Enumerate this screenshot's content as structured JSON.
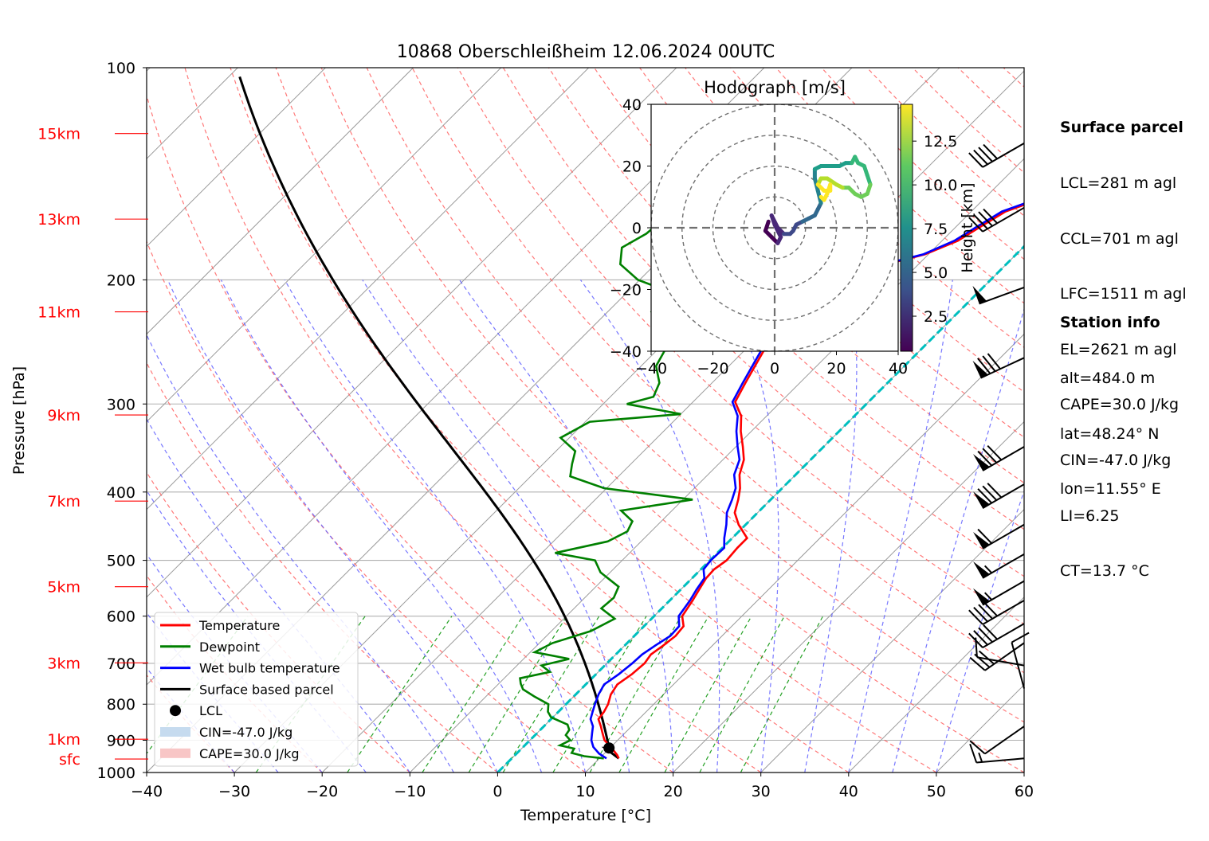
{
  "title": "10868 Oberschleißheim 12.06.2024 00UTC",
  "chart_data": {
    "type": "skew-t log-p",
    "xlabel": "Temperature [°C]",
    "ylabel": "Pressure [hPa]",
    "xlim": [
      -40,
      60
    ],
    "ylim": [
      1000,
      100
    ],
    "x_ticks": [
      "−40",
      "−30",
      "−20",
      "−10",
      "0",
      "10",
      "20",
      "30",
      "40",
      "50",
      "60"
    ],
    "x_tick_values": [
      -40,
      -30,
      -20,
      -10,
      0,
      10,
      20,
      30,
      40,
      50,
      60
    ],
    "y_ticks": [
      "100",
      "200",
      "300",
      "400",
      "500",
      "600",
      "700",
      "800",
      "900",
      "1000"
    ],
    "y_tick_values": [
      100,
      200,
      300,
      400,
      500,
      600,
      700,
      800,
      900,
      1000
    ],
    "height_labels": [
      {
        "label": "15km",
        "p": 124
      },
      {
        "label": "13km",
        "p": 164
      },
      {
        "label": "11km",
        "p": 222
      },
      {
        "label": "9km",
        "p": 311
      },
      {
        "label": "7km",
        "p": 412
      },
      {
        "label": "5km",
        "p": 545
      },
      {
        "label": "3km",
        "p": 699
      },
      {
        "label": "1km",
        "p": 897
      },
      {
        "label": "sfc",
        "p": 957
      }
    ],
    "series": [
      {
        "name": "Temperature",
        "color": "#ff0000",
        "points": [
          [
            12.2,
            955
          ],
          [
            11.6,
            944
          ],
          [
            10,
            920
          ],
          [
            8.5,
            900
          ],
          [
            7.5,
            880
          ],
          [
            6.5,
            860
          ],
          [
            5.4,
            840
          ],
          [
            5.2,
            820
          ],
          [
            4.8,
            800
          ],
          [
            4,
            775
          ],
          [
            3.6,
            750
          ],
          [
            4.1,
            725
          ],
          [
            4.3,
            700
          ],
          [
            4,
            680
          ],
          [
            4.4,
            660
          ],
          [
            4.7,
            640
          ],
          [
            4.5,
            620
          ],
          [
            3.2,
            600
          ],
          [
            2.6,
            570
          ],
          [
            2.1,
            550
          ],
          [
            1.6,
            530
          ],
          [
            1.5,
            515
          ],
          [
            1.9,
            500
          ],
          [
            1.7,
            480
          ],
          [
            1.7,
            465
          ],
          [
            -0.8,
            445
          ],
          [
            -2.6,
            428
          ],
          [
            -3.7,
            410
          ],
          [
            -4.8,
            395
          ],
          [
            -6.4,
            378
          ],
          [
            -7.6,
            360
          ],
          [
            -9.2,
            345
          ],
          [
            -11.2,
            328
          ],
          [
            -12.9,
            312
          ],
          [
            -15.2,
            298
          ],
          [
            -16.2,
            280
          ],
          [
            -17.2,
            262
          ],
          [
            -18.2,
            245
          ],
          [
            -19.5,
            228
          ],
          [
            -20.3,
            213
          ],
          [
            -19.5,
            202
          ],
          [
            -15.2,
            193
          ],
          [
            -10.4,
            184
          ],
          [
            -8.2,
            176
          ],
          [
            -7.2,
            168
          ],
          [
            -6.1,
            160
          ],
          [
            -2,
            150
          ],
          [
            -0.9,
            142
          ],
          [
            1.5,
            133
          ],
          [
            2.4,
            125
          ],
          [
            2.6,
            118
          ]
        ]
      },
      {
        "name": "Dewpoint",
        "color": "#008000",
        "points": [
          [
            10.5,
            955
          ],
          [
            8,
            948
          ],
          [
            6.2,
            938
          ],
          [
            6,
            925
          ],
          [
            4,
            915
          ],
          [
            4.6,
            900
          ],
          [
            3.5,
            885
          ],
          [
            3.3,
            870
          ],
          [
            2.5,
            855
          ],
          [
            -0.2,
            835
          ],
          [
            -1.2,
            820
          ],
          [
            -2,
            800
          ],
          [
            -4.5,
            780
          ],
          [
            -6.6,
            762
          ],
          [
            -7.5,
            748
          ],
          [
            -8.2,
            735
          ],
          [
            -5.5,
            720
          ],
          [
            -7.2,
            705
          ],
          [
            -4.8,
            690
          ],
          [
            -9.5,
            675
          ],
          [
            -8.5,
            655
          ],
          [
            -5.5,
            630
          ],
          [
            -4.2,
            605
          ],
          [
            -6.9,
            585
          ],
          [
            -6.7,
            565
          ],
          [
            -7.4,
            545
          ],
          [
            -11.1,
            520
          ],
          [
            -13.1,
            500
          ],
          [
            -18.5,
            488
          ],
          [
            -13.8,
            470
          ],
          [
            -12.7,
            455
          ],
          [
            -13.3,
            440
          ],
          [
            -15.8,
            425
          ],
          [
            -8.9,
            410
          ],
          [
            -20.3,
            395
          ],
          [
            -25.5,
            380
          ],
          [
            -26.7,
            365
          ],
          [
            -27.8,
            350
          ],
          [
            -31,
            335
          ],
          [
            -29.5,
            318
          ],
          [
            -20,
            310
          ],
          [
            -27.3,
            300
          ],
          [
            -25.1,
            293
          ],
          [
            -26,
            280
          ],
          [
            -28.3,
            265
          ],
          [
            -29.2,
            250
          ],
          [
            -31.4,
            235
          ],
          [
            -35,
            222
          ],
          [
            -35.2,
            208
          ],
          [
            -40.2,
            200
          ],
          [
            -44,
            190
          ],
          [
            -45.7,
            180
          ],
          [
            -44.5,
            172
          ],
          [
            -44.2,
            164
          ],
          [
            -42.5,
            156
          ],
          [
            -42,
            148
          ],
          [
            -40.8,
            140
          ],
          [
            -41,
            132
          ],
          [
            -40,
            125
          ],
          [
            -39.2,
            120
          ]
        ]
      },
      {
        "name": "Wet bulb temperature",
        "color": "#0000ff",
        "points": [
          [
            10.8,
            955
          ],
          [
            9.4,
            940
          ],
          [
            8,
            920
          ],
          [
            7,
            900
          ],
          [
            6.3,
            880
          ],
          [
            5.6,
            860
          ],
          [
            4.5,
            840
          ],
          [
            3.9,
            820
          ],
          [
            3.3,
            800
          ],
          [
            2.6,
            775
          ],
          [
            2.1,
            750
          ],
          [
            2.6,
            725
          ],
          [
            2.9,
            700
          ],
          [
            3,
            680
          ],
          [
            3.5,
            660
          ],
          [
            4.1,
            640
          ],
          [
            4,
            620
          ],
          [
            2.8,
            600
          ],
          [
            2.3,
            570
          ],
          [
            1.8,
            550
          ],
          [
            1.4,
            530
          ],
          [
            0.3,
            515
          ],
          [
            0.1,
            500
          ],
          [
            0.2,
            480
          ],
          [
            -0.9,
            465
          ],
          [
            -2.2,
            445
          ],
          [
            -3.5,
            428
          ],
          [
            -4.4,
            410
          ],
          [
            -5.3,
            395
          ],
          [
            -7,
            378
          ],
          [
            -8.1,
            360
          ],
          [
            -9.8,
            345
          ],
          [
            -11.7,
            328
          ],
          [
            -13.3,
            312
          ],
          [
            -15.5,
            298
          ],
          [
            -16.5,
            280
          ],
          [
            -17.5,
            262
          ],
          [
            -18.5,
            245
          ],
          [
            -19.7,
            228
          ],
          [
            -20.5,
            213
          ],
          [
            -19.7,
            202
          ],
          [
            -15.5,
            193
          ],
          [
            -10.6,
            184
          ],
          [
            -8.6,
            176
          ],
          [
            -7.6,
            168
          ],
          [
            -6.5,
            160
          ],
          [
            -2.5,
            150
          ],
          [
            -1.4,
            142
          ],
          [
            0.9,
            133
          ],
          [
            1.8,
            125
          ],
          [
            2.2,
            118
          ]
        ]
      },
      {
        "name": "Surface based parcel",
        "color": "#000000"
      }
    ],
    "lcl": {
      "label": "LCL",
      "t": 9.9,
      "p": 923
    },
    "legend_position": "lower-left",
    "legend": [
      {
        "label": "Temperature",
        "kind": "line",
        "color": "#ff0000"
      },
      {
        "label": "Dewpoint",
        "kind": "line",
        "color": "#008000"
      },
      {
        "label": "Wet bulb temperature",
        "kind": "line",
        "color": "#0000ff"
      },
      {
        "label": "Surface based parcel",
        "kind": "line",
        "color": "#000000"
      },
      {
        "label": "LCL",
        "kind": "dot",
        "color": "#000000"
      },
      {
        "label": "CIN=-47.0 J/kg",
        "kind": "patch",
        "color": "#c6dbef"
      },
      {
        "label": "CAPE=30.0 J/kg",
        "kind": "patch",
        "color": "#f8c6c6"
      }
    ],
    "zero_isotherm_color": "#00bfbf",
    "wind_barbs": [
      {
        "p": 955,
        "speed_kt": 15,
        "dir": 265
      },
      {
        "p": 860,
        "speed_kt": 10,
        "dir": 235
      },
      {
        "p": 760,
        "speed_kt": 10,
        "dir": 345
      },
      {
        "p": 705,
        "speed_kt": 10,
        "dir": 280
      },
      {
        "p": 655,
        "speed_kt": 30,
        "dir": 235
      },
      {
        "p": 615,
        "speed_kt": 40,
        "dir": 240
      },
      {
        "p": 570,
        "speed_kt": 40,
        "dir": 240
      },
      {
        "p": 535,
        "speed_kt": 55,
        "dir": 240
      },
      {
        "p": 490,
        "speed_kt": 55,
        "dir": 240
      },
      {
        "p": 445,
        "speed_kt": 60,
        "dir": 240
      },
      {
        "p": 390,
        "speed_kt": 80,
        "dir": 240
      },
      {
        "p": 345,
        "speed_kt": 80,
        "dir": 240
      },
      {
        "p": 258,
        "speed_kt": 80,
        "dir": 245
      },
      {
        "p": 205,
        "speed_kt": 50,
        "dir": 250
      },
      {
        "p": 158,
        "speed_kt": 40,
        "dir": 240
      },
      {
        "p": 128,
        "speed_kt": 40,
        "dir": 240
      }
    ],
    "hodograph": {
      "title": "Hodograph [m/s]",
      "xlim": [
        -40,
        40
      ],
      "ylim": [
        -40,
        40
      ],
      "ticks": [
        "−40",
        "−20",
        "0",
        "20",
        "40"
      ],
      "tick_values": [
        -40,
        -20,
        0,
        20,
        40
      ],
      "colorbar_label": "Height [km]",
      "colorbar_ticks": [
        "2.5",
        "5.0",
        "7.5",
        "10.0",
        "12.5"
      ],
      "colorbar_tick_values": [
        2.5,
        5.0,
        7.5,
        10.0,
        12.5
      ],
      "colorbar_range": [
        0.5,
        14.6
      ],
      "colormap": "viridis",
      "points": [
        [
          -2,
          2,
          0.5
        ],
        [
          -3,
          -1,
          0.9
        ],
        [
          -1,
          -3,
          1.3
        ],
        [
          1,
          -5,
          1.7
        ],
        [
          2,
          -3,
          2.1
        ],
        [
          0,
          1,
          2.4
        ],
        [
          -1,
          4,
          2.6
        ],
        [
          1,
          0,
          2.9
        ],
        [
          3,
          -2,
          3.2
        ],
        [
          5,
          -2,
          3.5
        ],
        [
          6,
          -1,
          3.8
        ],
        [
          7,
          1,
          4.1
        ],
        [
          9,
          2,
          4.5
        ],
        [
          11,
          3,
          4.9
        ],
        [
          13,
          4,
          5.3
        ],
        [
          14,
          6,
          5.7
        ],
        [
          15,
          8,
          6.1
        ],
        [
          14,
          12,
          6.6
        ],
        [
          13,
          16,
          7.0
        ],
        [
          13,
          19,
          7.4
        ],
        [
          15,
          20,
          7.7
        ],
        [
          18,
          20,
          8.0
        ],
        [
          21,
          20,
          8.3
        ],
        [
          23,
          21,
          8.6
        ],
        [
          25,
          21,
          8.9
        ],
        [
          26,
          23,
          9.1
        ],
        [
          27,
          21,
          9.4
        ],
        [
          29,
          20,
          9.7
        ],
        [
          30,
          17,
          9.9
        ],
        [
          31,
          14,
          10.2
        ],
        [
          30,
          11,
          10.5
        ],
        [
          28,
          10,
          10.8
        ],
        [
          26,
          11,
          11.1
        ],
        [
          24,
          13,
          11.4
        ],
        [
          22,
          13,
          11.7
        ],
        [
          20,
          14,
          12.0
        ],
        [
          17,
          16,
          12.3
        ],
        [
          15,
          16,
          12.6
        ],
        [
          14,
          14,
          12.9
        ],
        [
          16,
          12,
          13.2
        ],
        [
          18,
          12,
          13.5
        ],
        [
          18,
          14,
          13.8
        ],
        [
          17,
          11,
          14.1
        ],
        [
          16,
          9,
          14.4
        ],
        [
          15,
          10,
          14.6
        ]
      ]
    }
  },
  "surface_parcel": {
    "title": "Surface parcel",
    "lines": [
      "LCL=281 m agl",
      "CCL=701 m agl",
      "LFC=1511 m agl",
      "EL=2621 m agl",
      "CAPE=30.0 J/kg",
      "CIN=-47.0 J/kg",
      "LI=6.25",
      "CT=13.7 °C"
    ]
  },
  "station_info": {
    "title": "Station info",
    "lines": [
      "alt=484.0 m",
      "lat=48.24° N",
      "lon=11.55° E"
    ]
  }
}
